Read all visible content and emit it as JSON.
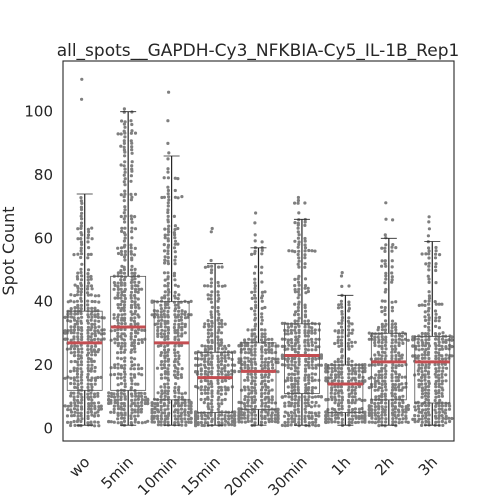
{
  "chart_data": {
    "type": "box",
    "title": "all_spots__GAPDH-Cy3_NFKBIA-Cy5_IL-1B_Rep1",
    "ylabel": "Spot Count",
    "xlabel": "",
    "ylim": [
      -4,
      116
    ],
    "yticks": [
      0,
      20,
      40,
      60,
      80,
      100
    ],
    "grid": false,
    "overlay": "swarm points",
    "categories": [
      "wo",
      "5min",
      "10min",
      "15min",
      "20min",
      "30min",
      "1h",
      "2h",
      "3h"
    ],
    "boxes": [
      {
        "category": "wo",
        "q1": 12,
        "median": 27,
        "q3": 37,
        "whisker_low": 1,
        "whisker_high": 74,
        "n": 380,
        "max": 111
      },
      {
        "category": "5min",
        "q1": 12,
        "median": 32,
        "q3": 48,
        "whisker_low": 1,
        "whisker_high": 100,
        "n": 420,
        "max": 105
      },
      {
        "category": "10min",
        "q1": 9,
        "median": 27,
        "q3": 40,
        "whisker_low": 1,
        "whisker_high": 86,
        "n": 400,
        "max": 107
      },
      {
        "category": "15min",
        "q1": 5,
        "median": 16,
        "q3": 24,
        "whisker_low": 1,
        "whisker_high": 52,
        "n": 320,
        "max": 73
      },
      {
        "category": "20min",
        "q1": 6,
        "median": 18,
        "q3": 27,
        "whisker_low": 1,
        "whisker_high": 57,
        "n": 340,
        "max": 68
      },
      {
        "category": "30min",
        "q1": 11,
        "median": 23,
        "q3": 33,
        "whisker_low": 1,
        "whisker_high": 66,
        "n": 360,
        "max": 75
      },
      {
        "category": "1h",
        "q1": 5,
        "median": 14,
        "q3": 20,
        "whisker_low": 1,
        "whisker_high": 42,
        "n": 300,
        "max": 51
      },
      {
        "category": "2h",
        "q1": 9,
        "median": 21,
        "q3": 30,
        "whisker_low": 1,
        "whisker_high": 60,
        "n": 320,
        "max": 71
      },
      {
        "category": "3h",
        "q1": 8,
        "median": 21,
        "q3": 29,
        "whisker_low": 1,
        "whisker_high": 59,
        "n": 320,
        "max": 70
      }
    ],
    "colors": {
      "median": "#c44e52",
      "points": "#7f7f7f",
      "box_edge": "#555555",
      "frame": "#262626"
    }
  }
}
